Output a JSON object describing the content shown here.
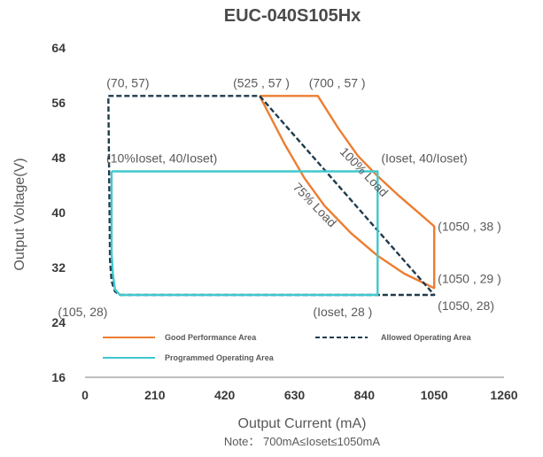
{
  "chart_data": {
    "type": "line",
    "title": "EUC-040S105Hx",
    "xlabel": "Output Current (mA)",
    "ylabel": "Output Voltage(V)",
    "note": "Note： 700mA≤Ioset≤1050mA",
    "xlim": [
      0,
      1260
    ],
    "ylim": [
      16,
      64
    ],
    "x_ticks": [
      "0",
      "210",
      "420",
      "630",
      "840",
      "1050",
      "1260"
    ],
    "y_ticks": [
      "16",
      "24",
      "32",
      "40",
      "48",
      "56",
      "64"
    ],
    "grid": false,
    "legend_position": "bottom-inside",
    "legend": [
      "Good Performance Area",
      "Allowed Operating Area",
      "Programmed Operating Area"
    ],
    "colors": {
      "good": "#ED7D31",
      "allowed": "#1F3B4D",
      "programmed": "#40C8CF"
    },
    "series": [
      {
        "name": "Good Performance Area",
        "style": "solid",
        "points": [
          [
            525,
            57
          ],
          [
            700,
            57
          ],
          [
            760,
            52.4
          ],
          [
            820,
            48.3
          ],
          [
            880,
            45.3
          ],
          [
            940,
            42.6
          ],
          [
            1000,
            40.1
          ],
          [
            1050,
            38
          ],
          [
            1050,
            29
          ],
          [
            960,
            31.1
          ],
          [
            880,
            33.7
          ],
          [
            800,
            37.0
          ],
          [
            720,
            41.0
          ],
          [
            660,
            45.0
          ],
          [
            600,
            50.0
          ],
          [
            525,
            57
          ]
        ]
      },
      {
        "name": "Allowed Operating Area",
        "style": "dashed",
        "points": [
          [
            70,
            57
          ],
          [
            525,
            57
          ],
          [
            525,
            57
          ],
          [
            1050,
            28
          ],
          [
            105,
            28
          ],
          [
            90,
            28.5
          ],
          [
            80,
            30
          ],
          [
            75,
            33
          ],
          [
            70,
            57
          ]
        ]
      },
      {
        "name": "Programmed Operating Area",
        "style": "solid",
        "points": [
          [
            80,
            46
          ],
          [
            880,
            46
          ],
          [
            880,
            28
          ],
          [
            105,
            28
          ],
          [
            90,
            28.8
          ],
          [
            84,
            31
          ],
          [
            80,
            34
          ],
          [
            80,
            46
          ]
        ]
      }
    ],
    "curve_labels": [
      "100% Load",
      "75% Load"
    ],
    "annotations": [
      {
        "text": "(70, 57)",
        "x": 70,
        "y": 57
      },
      {
        "text": "(525 , 57 )",
        "x": 525,
        "y": 57
      },
      {
        "text": "(700 , 57 )",
        "x": 700,
        "y": 57
      },
      {
        "text": "(10%Ioset, 40/Ioset)",
        "x": 80,
        "y": 46
      },
      {
        "text": "(Ioset, 40/Ioset)",
        "x": 880,
        "y": 46
      },
      {
        "text": "(1050 , 38 )",
        "x": 1050,
        "y": 38
      },
      {
        "text": "(1050 , 29 )",
        "x": 1050,
        "y": 29
      },
      {
        "text": "(1050, 28)",
        "x": 1050,
        "y": 28
      },
      {
        "text": "(105, 28)",
        "x": 105,
        "y": 28
      },
      {
        "text": "(Ioset, 28 )",
        "x": 880,
        "y": 28
      }
    ]
  }
}
